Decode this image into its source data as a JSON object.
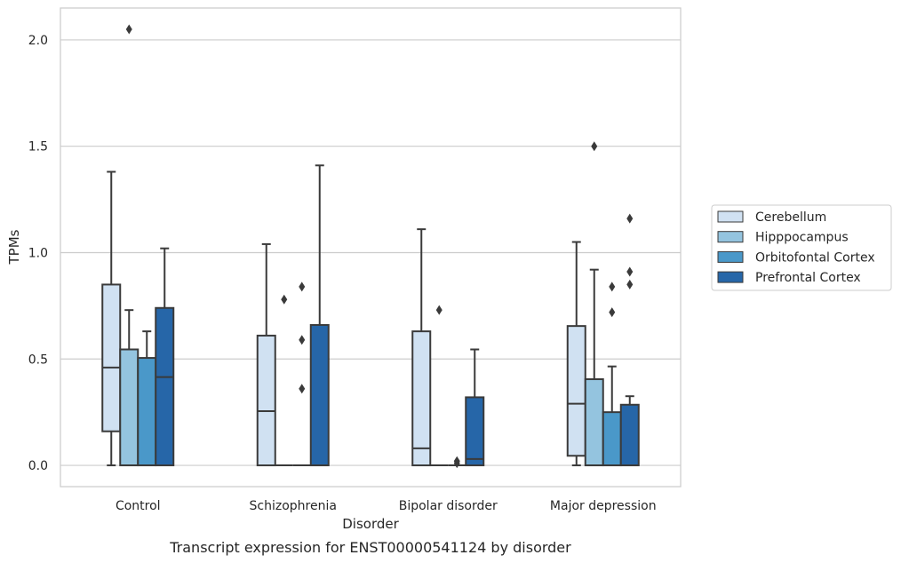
{
  "chart_data": {
    "type": "box",
    "title": "",
    "caption": "Transcript expression for ENST00000541124 by disorder",
    "xlabel": "Disorder",
    "ylabel": "TPMs",
    "ylim": [
      -0.1,
      2.15
    ],
    "yticks": [
      0.0,
      0.5,
      1.0,
      1.5,
      2.0
    ],
    "ytick_labels": [
      "0.0",
      "0.5",
      "1.0",
      "1.5",
      "2.0"
    ],
    "grid": "horizontal",
    "legend_position": "right",
    "categories": [
      "Control",
      "Schizophrenia",
      "Bipolar disorder",
      "Major depression"
    ],
    "series": [
      {
        "name": "Cerebellum",
        "color": "#d0e1f2",
        "boxes": [
          {
            "whisker_low": 0.0,
            "q1": 0.16,
            "median": 0.46,
            "q3": 0.85,
            "whisker_high": 1.38,
            "outliers": []
          },
          {
            "whisker_low": 0.0,
            "q1": 0.0,
            "median": 0.255,
            "q3": 0.61,
            "whisker_high": 1.04,
            "outliers": []
          },
          {
            "whisker_low": 0.0,
            "q1": 0.0,
            "median": 0.08,
            "q3": 0.63,
            "whisker_high": 1.11,
            "outliers": []
          },
          {
            "whisker_low": 0.0,
            "q1": 0.045,
            "median": 0.29,
            "q3": 0.655,
            "whisker_high": 1.05,
            "outliers": []
          }
        ]
      },
      {
        "name": "Hipppocampus",
        "color": "#94c4df",
        "boxes": [
          {
            "whisker_low": 0.0,
            "q1": 0.0,
            "median": 0.0,
            "q3": 0.545,
            "whisker_high": 0.73,
            "outliers": [
              2.05
            ]
          },
          {
            "whisker_low": 0.0,
            "q1": 0.0,
            "median": 0.0,
            "q3": 0.0,
            "whisker_high": 0.0,
            "outliers": [
              0.78
            ]
          },
          {
            "whisker_low": 0.0,
            "q1": 0.0,
            "median": 0.0,
            "q3": 0.0,
            "whisker_high": 0.0,
            "outliers": [
              0.73
            ]
          },
          {
            "whisker_low": 0.0,
            "q1": 0.0,
            "median": 0.0,
            "q3": 0.405,
            "whisker_high": 0.92,
            "outliers": [
              1.5
            ]
          }
        ]
      },
      {
        "name": "Orbitofontal Cortex",
        "color": "#4a98c9",
        "boxes": [
          {
            "whisker_low": 0.0,
            "q1": 0.0,
            "median": 0.0,
            "q3": 0.505,
            "whisker_high": 0.63,
            "outliers": []
          },
          {
            "whisker_low": 0.0,
            "q1": 0.0,
            "median": 0.0,
            "q3": 0.0,
            "whisker_high": 0.0,
            "outliers": [
              0.36,
              0.59,
              0.84
            ]
          },
          {
            "whisker_low": 0.0,
            "q1": 0.0,
            "median": 0.0,
            "q3": 0.0,
            "whisker_high": 0.0,
            "outliers": [
              0.01,
              0.02
            ]
          },
          {
            "whisker_low": 0.0,
            "q1": 0.0,
            "median": 0.0,
            "q3": 0.25,
            "whisker_high": 0.465,
            "outliers": [
              0.72,
              0.84
            ]
          }
        ]
      },
      {
        "name": "Prefrontal Cortex",
        "color": "#2666a8",
        "boxes": [
          {
            "whisker_low": 0.0,
            "q1": 0.0,
            "median": 0.415,
            "q3": 0.74,
            "whisker_high": 1.02,
            "outliers": []
          },
          {
            "whisker_low": 0.0,
            "q1": 0.0,
            "median": 0.0,
            "q3": 0.66,
            "whisker_high": 1.41,
            "outliers": []
          },
          {
            "whisker_low": 0.0,
            "q1": 0.0,
            "median": 0.03,
            "q3": 0.32,
            "whisker_high": 0.545,
            "outliers": []
          },
          {
            "whisker_low": 0.0,
            "q1": 0.0,
            "median": 0.0,
            "q3": 0.285,
            "whisker_high": 0.325,
            "outliers": [
              0.85,
              0.91,
              1.16
            ]
          }
        ]
      }
    ]
  }
}
